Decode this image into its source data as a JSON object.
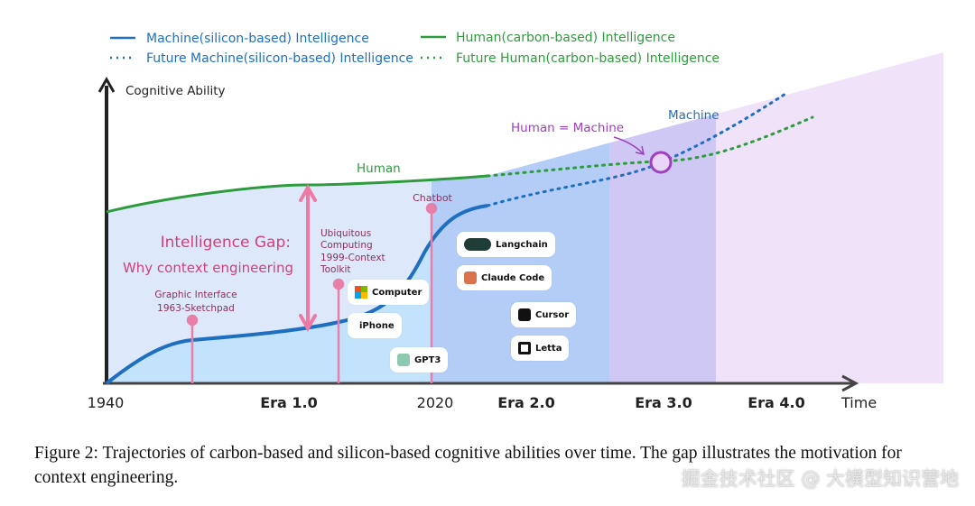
{
  "legend": {
    "machine": "Machine(silicon-based) Intelligence",
    "human": "Human(carbon-based) Intelligence",
    "future_machine": "Future Machine(silicon-based) Intelligence",
    "future_human": "Future Human(carbon-based) Intelligence"
  },
  "axes": {
    "y_label": "Cognitive Ability",
    "x_label": "Time",
    "x_ticks": [
      "1940",
      "Era 1.0",
      "2020",
      "Era 2.0",
      "Era 3.0",
      "Era 4.0"
    ]
  },
  "annotations": {
    "human": "Human",
    "machine": "Machine",
    "equal": "Human = Machine",
    "gap_title": "Intelligence Gap:",
    "gap_sub": "Why context engineering",
    "gui": [
      "Graphic Interface",
      "1963-Sketchpad"
    ],
    "ubi": [
      "Ubiquitous",
      "Computing",
      "1999-Context",
      "Toolkit"
    ],
    "chatbot": "Chatbot"
  },
  "badges": {
    "computer": "Computer",
    "iphone": "iPhone",
    "gpt3": "GPT3",
    "langchain": "Langchain",
    "claude": "Claude Code",
    "cursor": "Cursor",
    "letta": "Letta"
  },
  "colors": {
    "machine": "#1f6fc0",
    "human": "#2e9b3e",
    "pink": "#e77fa8",
    "purple": "#a03fc0"
  },
  "caption": "Figure 2: Trajectories of carbon-based and silicon-based cognitive abilities over time. The gap illustrates the motivation for context engineering.",
  "watermark": "掘金技术社区 @ 大模型知识营地"
}
